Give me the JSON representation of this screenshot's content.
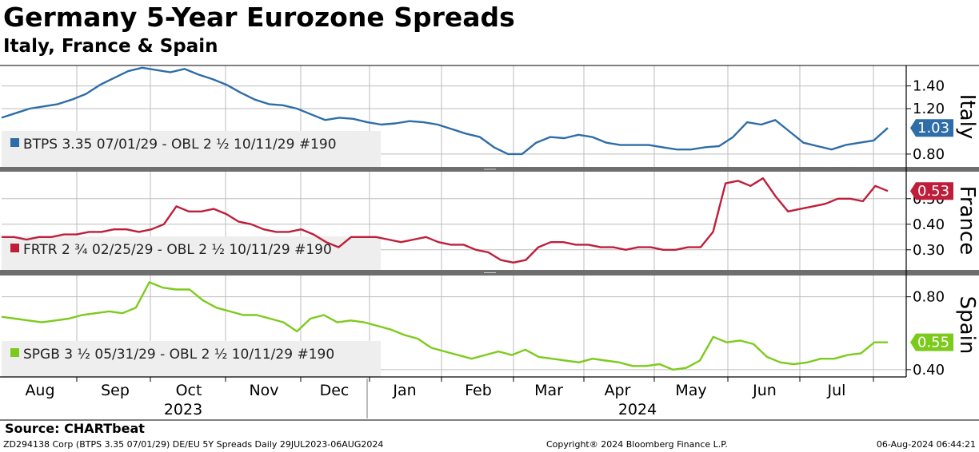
{
  "header": {
    "title": "Germany 5-Year Eurozone Spreads",
    "subtitle": "Italy, France & Spain"
  },
  "source": "Source: CHARTbeat",
  "footer": {
    "left": "ZD294138 Corp (BTPS 3.35 07/01/29) DE/EU 5Y Spreads  Daily 29JUL2023-06AUG2024",
    "middle": "Copyright® 2024 Bloomberg Finance L.P.",
    "right": "06-Aug-2024 06:44:21"
  },
  "chart_data": {
    "type": "line",
    "x_axis": {
      "months": [
        "Aug",
        "Sep",
        "Oct",
        "Nov",
        "Dec",
        "Jan",
        "Feb",
        "Mar",
        "Apr",
        "May",
        "Jun",
        "Jul"
      ],
      "years": [
        "2023",
        "2024"
      ]
    },
    "panels": [
      {
        "name": "Italy",
        "color": "#2e6da8",
        "legend": "BTPS 3.35 07/01/29 - OBL 2 ½ 10/11/29 #190",
        "last_value": 1.03,
        "last_label": "1.03",
        "ylim": [
          0.68,
          1.58
        ],
        "ticks": [
          0.8,
          1.2,
          1.4
        ],
        "tick_labels": [
          "0.80",
          "1.20",
          "1.40"
        ],
        "values": [
          1.12,
          1.16,
          1.2,
          1.22,
          1.24,
          1.28,
          1.33,
          1.41,
          1.47,
          1.53,
          1.56,
          1.54,
          1.52,
          1.55,
          1.5,
          1.46,
          1.41,
          1.34,
          1.28,
          1.24,
          1.23,
          1.2,
          1.15,
          1.1,
          1.12,
          1.11,
          1.08,
          1.06,
          1.07,
          1.09,
          1.08,
          1.06,
          1.02,
          0.98,
          0.95,
          0.86,
          0.8,
          0.8,
          0.9,
          0.95,
          0.94,
          0.97,
          0.95,
          0.9,
          0.88,
          0.88,
          0.88,
          0.86,
          0.84,
          0.84,
          0.86,
          0.87,
          0.95,
          1.08,
          1.06,
          1.1,
          1.0,
          0.9,
          0.87,
          0.84,
          0.88,
          0.9,
          0.92,
          1.03
        ]
      },
      {
        "name": "France",
        "color": "#bf1e3a",
        "legend": "FRTR 2 ¾ 02/25/29 - OBL 2 ½ 10/11/29 #190",
        "last_value": 0.53,
        "last_label": "0.53",
        "ylim": [
          0.215,
          0.615
        ],
        "ticks": [
          0.3,
          0.4,
          0.5
        ],
        "tick_labels": [
          "0.30",
          "0.40",
          "0.50"
        ],
        "values": [
          0.35,
          0.35,
          0.34,
          0.35,
          0.35,
          0.36,
          0.36,
          0.37,
          0.37,
          0.38,
          0.38,
          0.37,
          0.38,
          0.4,
          0.47,
          0.45,
          0.45,
          0.46,
          0.44,
          0.41,
          0.4,
          0.38,
          0.37,
          0.37,
          0.38,
          0.36,
          0.33,
          0.31,
          0.35,
          0.35,
          0.35,
          0.34,
          0.33,
          0.34,
          0.35,
          0.33,
          0.32,
          0.32,
          0.3,
          0.29,
          0.26,
          0.25,
          0.26,
          0.31,
          0.33,
          0.33,
          0.32,
          0.32,
          0.31,
          0.31,
          0.3,
          0.31,
          0.31,
          0.3,
          0.3,
          0.31,
          0.31,
          0.37,
          0.56,
          0.57,
          0.55,
          0.58,
          0.51,
          0.45,
          0.46,
          0.47,
          0.48,
          0.5,
          0.5,
          0.49,
          0.55,
          0.53
        ]
      },
      {
        "name": "Spain",
        "color": "#7ccb1c",
        "legend": "SPGB 3 ½ 05/31/29 - OBL 2 ½ 10/11/29 #190",
        "last_value": 0.55,
        "last_label": "0.55",
        "ylim": [
          0.36,
          0.93
        ],
        "ticks": [
          0.4,
          0.8
        ],
        "tick_labels": [
          "0.40",
          "0.80"
        ],
        "values": [
          0.69,
          0.68,
          0.67,
          0.66,
          0.67,
          0.68,
          0.7,
          0.71,
          0.72,
          0.71,
          0.74,
          0.88,
          0.85,
          0.84,
          0.84,
          0.78,
          0.74,
          0.72,
          0.7,
          0.7,
          0.68,
          0.66,
          0.61,
          0.68,
          0.7,
          0.66,
          0.67,
          0.66,
          0.64,
          0.62,
          0.59,
          0.57,
          0.52,
          0.5,
          0.48,
          0.46,
          0.48,
          0.5,
          0.48,
          0.51,
          0.47,
          0.46,
          0.45,
          0.44,
          0.46,
          0.45,
          0.44,
          0.42,
          0.42,
          0.43,
          0.4,
          0.41,
          0.45,
          0.58,
          0.55,
          0.56,
          0.54,
          0.47,
          0.44,
          0.43,
          0.44,
          0.46,
          0.46,
          0.48,
          0.49,
          0.55,
          0.55
        ]
      }
    ]
  }
}
